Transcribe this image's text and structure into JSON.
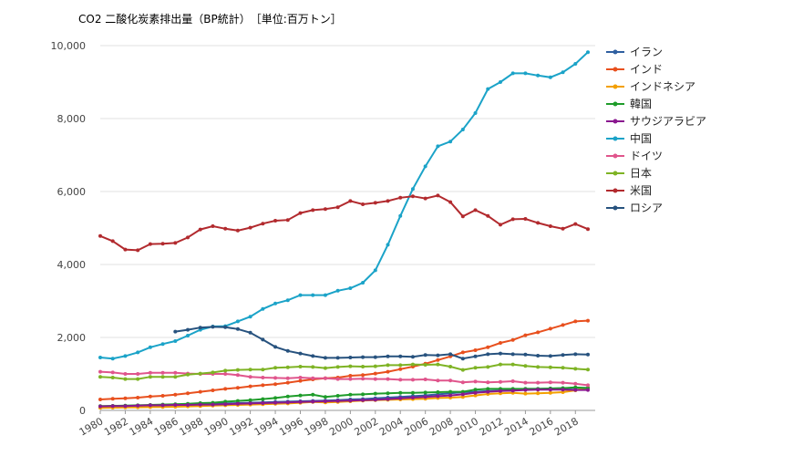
{
  "chart_data": {
    "type": "line",
    "title": "CO2 二酸化炭素排出量（BP統計）　［単位:百万トン］",
    "xlabel": "",
    "ylabel": "",
    "ylim": [
      0,
      10000
    ],
    "xlim": [
      1980,
      2019
    ],
    "yticks": [
      "0",
      "2,000",
      "4,000",
      "6,000",
      "8,000",
      "10,000"
    ],
    "ytick_values": [
      0,
      2000,
      4000,
      6000,
      8000,
      10000
    ],
    "xticks": [
      "1980",
      "1982",
      "1984",
      "1986",
      "1988",
      "1990",
      "1992",
      "1994",
      "1996",
      "1998",
      "2000",
      "2002",
      "2004",
      "2006",
      "2008",
      "2010",
      "2012",
      "2014",
      "2016",
      "2018"
    ],
    "grid": true,
    "legend": "right",
    "x": [
      1980,
      1981,
      1982,
      1983,
      1984,
      1985,
      1986,
      1987,
      1988,
      1989,
      1990,
      1991,
      1992,
      1993,
      1994,
      1995,
      1996,
      1997,
      1998,
      1999,
      2000,
      2001,
      2002,
      2003,
      2004,
      2005,
      2006,
      2007,
      2008,
      2009,
      2010,
      2011,
      2012,
      2013,
      2014,
      2015,
      2016,
      2017,
      2018,
      2019
    ],
    "series": [
      {
        "name": "イラン",
        "color": "#2f5fa0",
        "values": [
          80,
          90,
          95,
          110,
          130,
          140,
          150,
          160,
          170,
          180,
          190,
          200,
          210,
          220,
          230,
          240,
          250,
          260,
          270,
          280,
          300,
          310,
          330,
          350,
          370,
          390,
          410,
          440,
          470,
          500,
          510,
          530,
          540,
          560,
          590,
          590,
          600,
          610,
          620,
          620
        ]
      },
      {
        "name": "インド",
        "color": "#e8501e",
        "values": [
          300,
          320,
          330,
          350,
          380,
          400,
          430,
          470,
          510,
          550,
          590,
          620,
          660,
          690,
          720,
          760,
          810,
          850,
          880,
          900,
          950,
          970,
          1010,
          1060,
          1130,
          1200,
          1280,
          1380,
          1480,
          1590,
          1650,
          1730,
          1850,
          1930,
          2060,
          2140,
          2240,
          2340,
          2440,
          2460
        ]
      },
      {
        "name": "インドネシア",
        "color": "#f3a000",
        "values": [
          70,
          75,
          80,
          85,
          90,
          95,
          100,
          110,
          120,
          130,
          140,
          150,
          160,
          170,
          180,
          190,
          210,
          230,
          220,
          230,
          250,
          270,
          280,
          290,
          300,
          310,
          320,
          340,
          350,
          370,
          410,
          450,
          470,
          480,
          460,
          470,
          480,
          500,
          550,
          620
        ]
      },
      {
        "name": "韓国",
        "color": "#1e9c2a",
        "values": [
          120,
          125,
          130,
          140,
          150,
          160,
          170,
          180,
          200,
          210,
          240,
          260,
          280,
          310,
          340,
          380,
          410,
          430,
          370,
          400,
          430,
          440,
          460,
          470,
          480,
          480,
          490,
          500,
          510,
          510,
          570,
          590,
          590,
          590,
          590,
          590,
          600,
          610,
          630,
          610
        ]
      },
      {
        "name": "サウジアラビア",
        "color": "#8a188f",
        "values": [
          110,
          120,
          120,
          130,
          140,
          140,
          150,
          150,
          160,
          160,
          170,
          180,
          190,
          200,
          210,
          220,
          230,
          240,
          250,
          260,
          270,
          280,
          290,
          310,
          330,
          350,
          370,
          390,
          410,
          440,
          480,
          510,
          530,
          540,
          560,
          570,
          570,
          570,
          560,
          560
        ]
      },
      {
        "name": "中国",
        "color": "#1ba3c8",
        "values": [
          1450,
          1420,
          1490,
          1590,
          1730,
          1820,
          1900,
          2050,
          2210,
          2300,
          2310,
          2440,
          2570,
          2780,
          2930,
          3020,
          3160,
          3160,
          3160,
          3280,
          3350,
          3500,
          3840,
          4540,
          5330,
          6070,
          6690,
          7240,
          7370,
          7700,
          8150,
          8810,
          9000,
          9240,
          9240,
          9180,
          9130,
          9270,
          9500,
          9820
        ]
      },
      {
        "name": "ドイツ",
        "color": "#e0558c",
        "values": [
          1060,
          1040,
          1000,
          1000,
          1030,
          1030,
          1030,
          1010,
          1000,
          1000,
          1000,
          970,
          920,
          900,
          890,
          880,
          900,
          880,
          880,
          860,
          860,
          870,
          860,
          860,
          840,
          840,
          850,
          820,
          820,
          770,
          790,
          770,
          780,
          800,
          760,
          760,
          770,
          760,
          730,
          690
        ]
      },
      {
        "name": "日本",
        "color": "#7eb324",
        "values": [
          920,
          900,
          860,
          860,
          920,
          920,
          920,
          980,
          1010,
          1040,
          1090,
          1110,
          1120,
          1120,
          1170,
          1180,
          1200,
          1190,
          1160,
          1190,
          1210,
          1200,
          1210,
          1240,
          1240,
          1260,
          1250,
          1260,
          1200,
          1110,
          1170,
          1190,
          1260,
          1260,
          1220,
          1190,
          1180,
          1170,
          1140,
          1120
        ]
      },
      {
        "name": "米国",
        "color": "#b22a2e",
        "values": [
          4780,
          4640,
          4410,
          4390,
          4560,
          4570,
          4590,
          4740,
          4960,
          5050,
          4980,
          4930,
          5010,
          5120,
          5200,
          5220,
          5410,
          5490,
          5520,
          5570,
          5740,
          5650,
          5690,
          5740,
          5830,
          5870,
          5810,
          5890,
          5710,
          5320,
          5490,
          5330,
          5090,
          5240,
          5250,
          5140,
          5050,
          4980,
          5110,
          4970
        ]
      },
      {
        "name": "ロシア",
        "color": "#27527e",
        "values": [
          null,
          null,
          null,
          null,
          null,
          null,
          2160,
          2210,
          2270,
          2290,
          2280,
          2230,
          2130,
          1940,
          1740,
          1630,
          1560,
          1490,
          1440,
          1440,
          1450,
          1460,
          1460,
          1480,
          1480,
          1470,
          1520,
          1510,
          1540,
          1420,
          1480,
          1540,
          1560,
          1540,
          1530,
          1500,
          1490,
          1520,
          1540,
          1530
        ]
      }
    ]
  }
}
